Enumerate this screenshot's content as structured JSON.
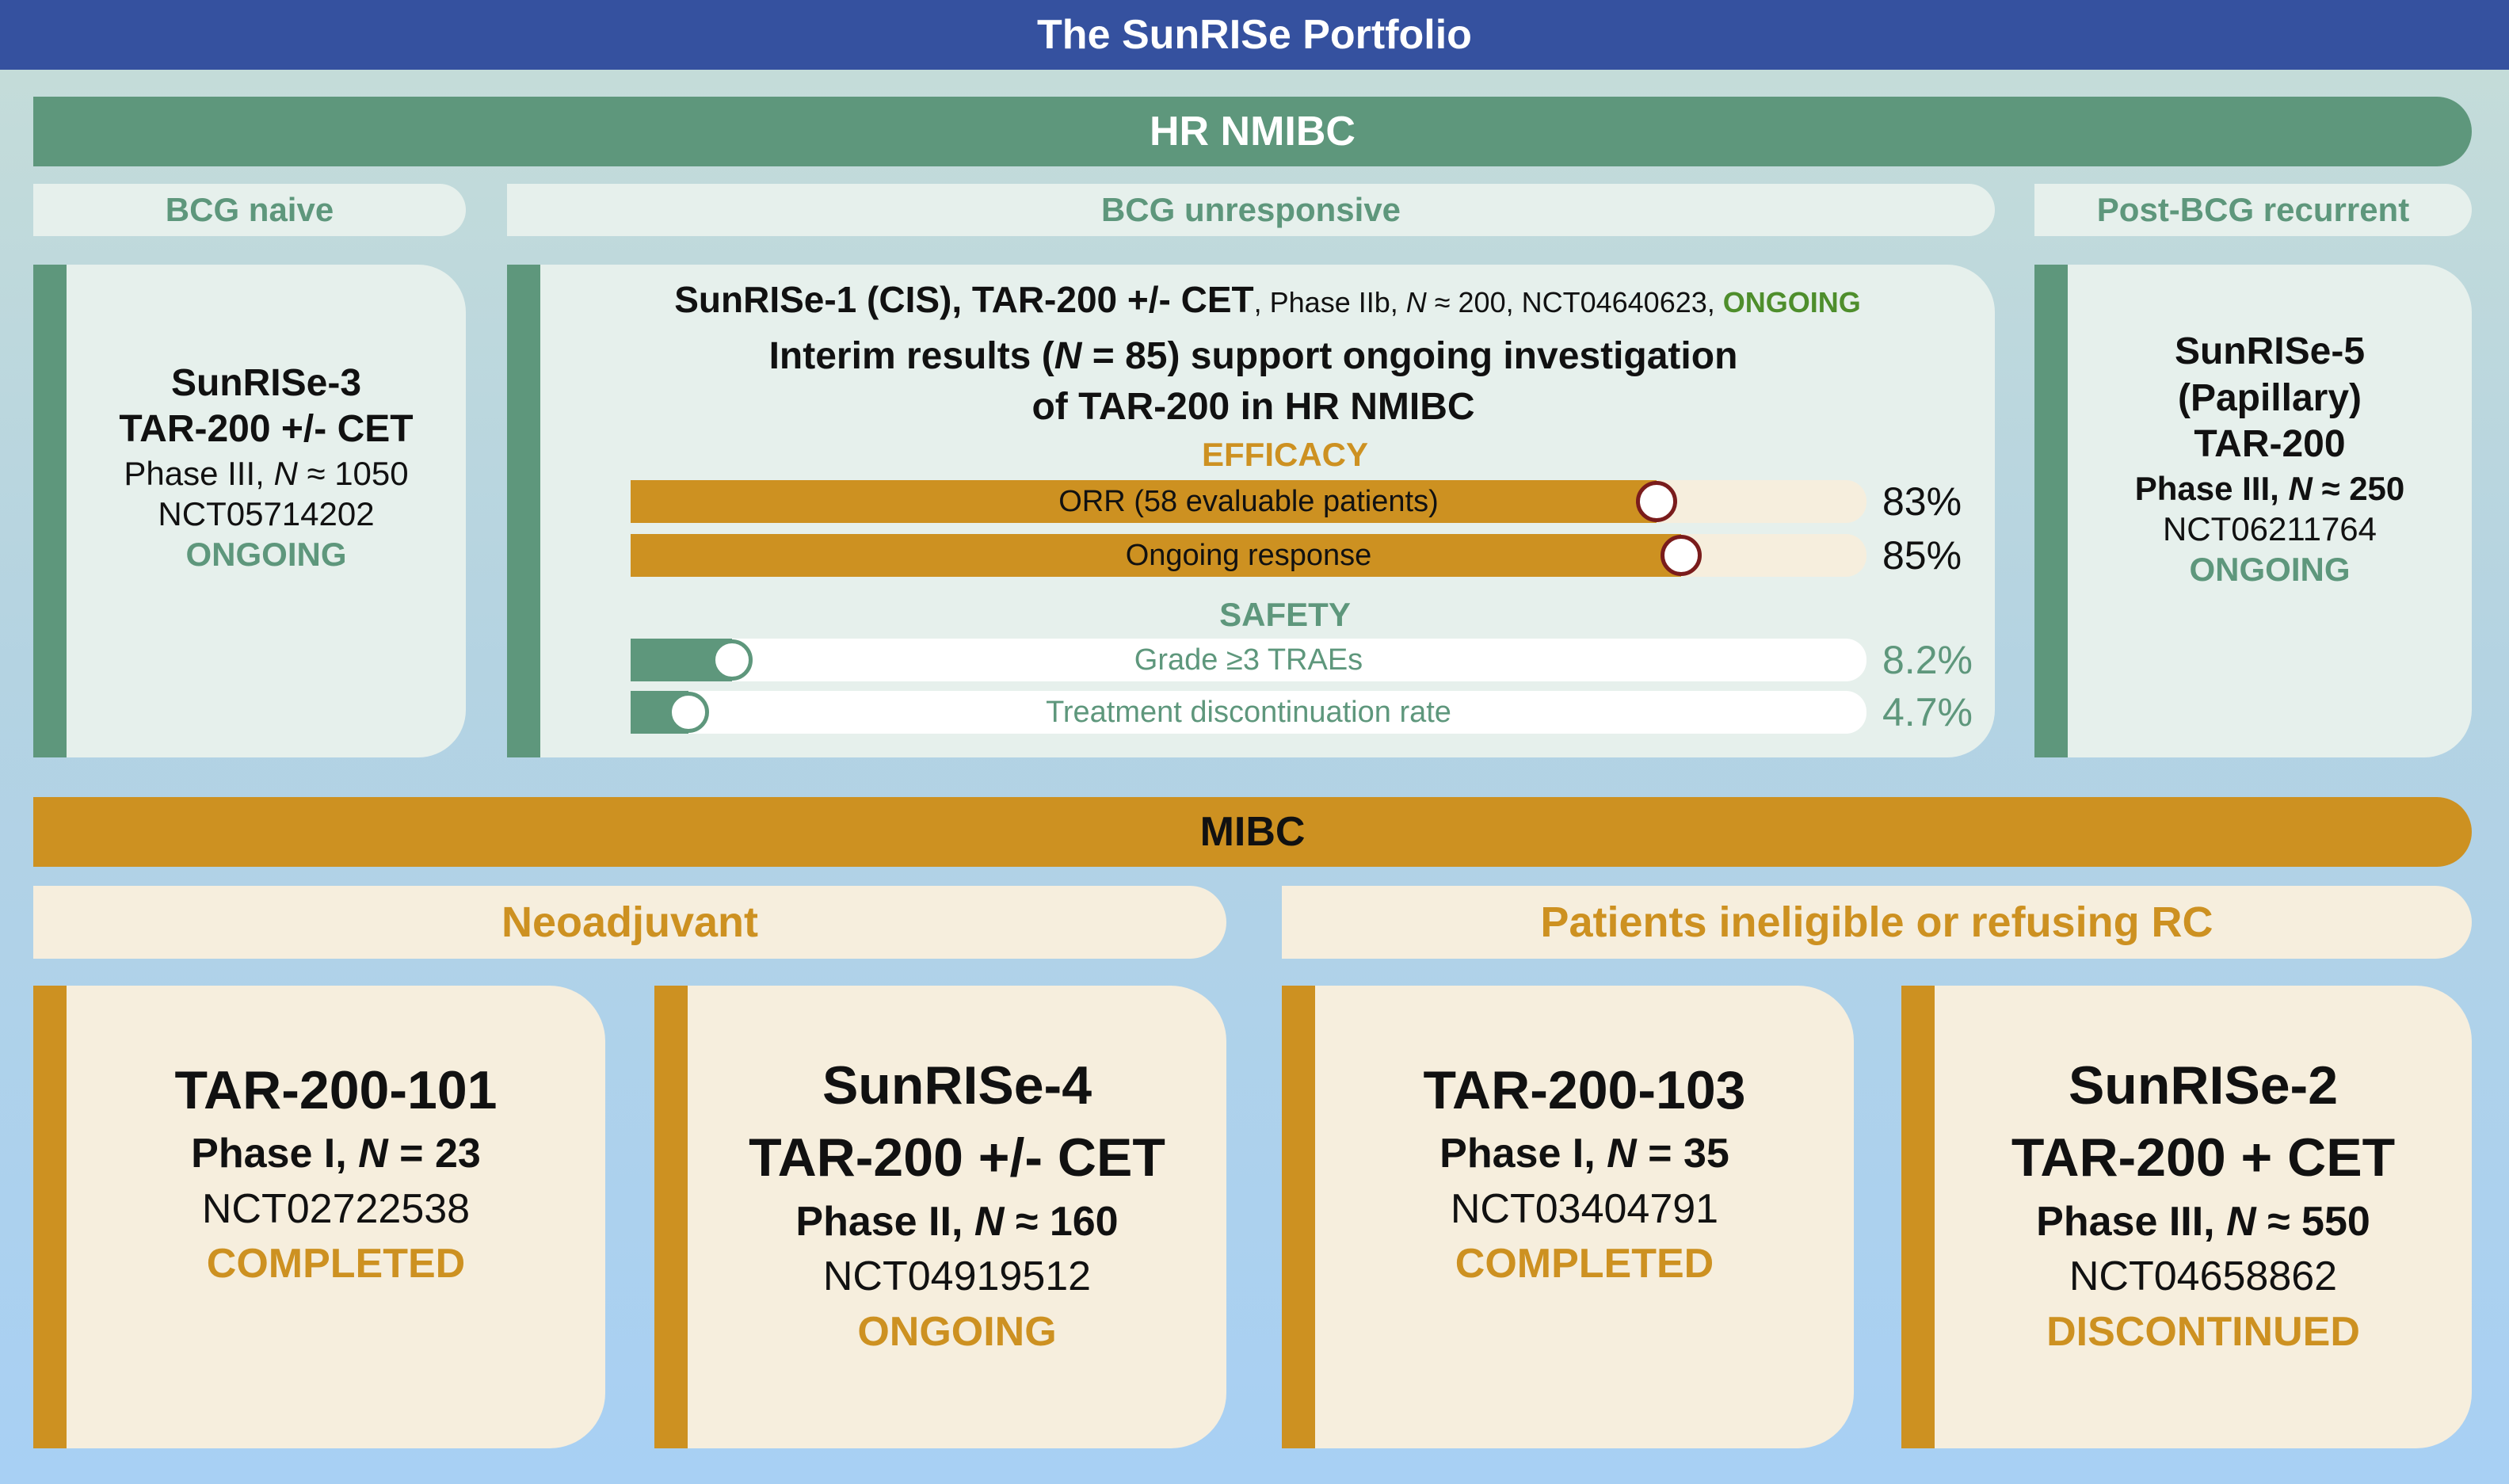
{
  "title": "The SunRISe Portfolio",
  "colors": {
    "title_bar": "#35519f",
    "nmibc_green": "#5e977c",
    "mibc_gold": "#cd9121",
    "ongoing_green": "#4e8e2c",
    "knob_red": "#7a1c1c"
  },
  "hr_nmibc": {
    "header": "HR NMIBC",
    "subheaders": {
      "bcg_naive": "BCG naive",
      "bcg_unresponsive": "BCG unresponsive",
      "post_bcg": "Post-BCG recurrent"
    },
    "sunrise3": {
      "name": "SunRISe-3",
      "treatment": "TAR-200 +/- CET",
      "phase_prefix": "Phase III, ",
      "n_symbol": "N",
      "n_value": " ≈ 1050",
      "nct": "NCT05714202",
      "status": "ONGOING"
    },
    "sunrise1": {
      "study": "SunRISe-1 (CIS), TAR-200 +/- CET",
      "phase_prefix": ", Phase IIb, ",
      "n_symbol": "N",
      "n_value": " ≈ 200, NCT04640623, ",
      "status": "ONGOING",
      "interim_a": "Interim results (",
      "interim_n": "N",
      "interim_b": " = 85) support ongoing investigation",
      "interim_line2": "of TAR-200 in HR NMIBC",
      "efficacy_heading": "EFFICACY",
      "safety_heading": "SAFETY",
      "efficacy": [
        {
          "label": "ORR (58 evaluable patients)",
          "value_text": "83%",
          "value": 83
        },
        {
          "label": "Ongoing response",
          "value_text": "85%",
          "value": 85
        }
      ],
      "safety": [
        {
          "label": "Grade ≥3 TRAEs",
          "value_text": "8.2%",
          "value": 8.2
        },
        {
          "label": "Treatment discontinuation rate",
          "value_text": "4.7%",
          "value": 4.7
        }
      ]
    },
    "sunrise5": {
      "name": "SunRISe-5",
      "subtitle": "(Papillary)",
      "treatment": "TAR-200",
      "phase_prefix": "Phase III, ",
      "n_symbol": "N",
      "n_value": " ≈ 250",
      "nct": "NCT06211764",
      "status": "ONGOING"
    }
  },
  "mibc": {
    "header": "MIBC",
    "subheaders": {
      "neoadjuvant": "Neoadjuvant",
      "ineligible": "Patients ineligible or refusing RC"
    },
    "tar101": {
      "name": "TAR-200-101",
      "phase_prefix": "Phase I, ",
      "n_symbol": "N",
      "n_value": " = 23",
      "nct": "NCT02722538",
      "status": "COMPLETED"
    },
    "sunrise4": {
      "name": "SunRISe-4",
      "treatment": "TAR-200 +/- CET",
      "phase_prefix": "Phase II, ",
      "n_symbol": "N",
      "n_value": " ≈ 160",
      "nct": "NCT04919512",
      "status": "ONGOING"
    },
    "tar103": {
      "name": "TAR-200-103",
      "phase_prefix": "Phase I, ",
      "n_symbol": "N",
      "n_value": " = 35",
      "nct": "NCT03404791",
      "status": "COMPLETED"
    },
    "sunrise2": {
      "name": "SunRISe-2",
      "treatment": "TAR-200 + CET",
      "phase_prefix": "Phase III, ",
      "n_symbol": "N",
      "n_value": " ≈ 550",
      "nct": "NCT04658862",
      "status": "DISCONTINUED"
    }
  }
}
